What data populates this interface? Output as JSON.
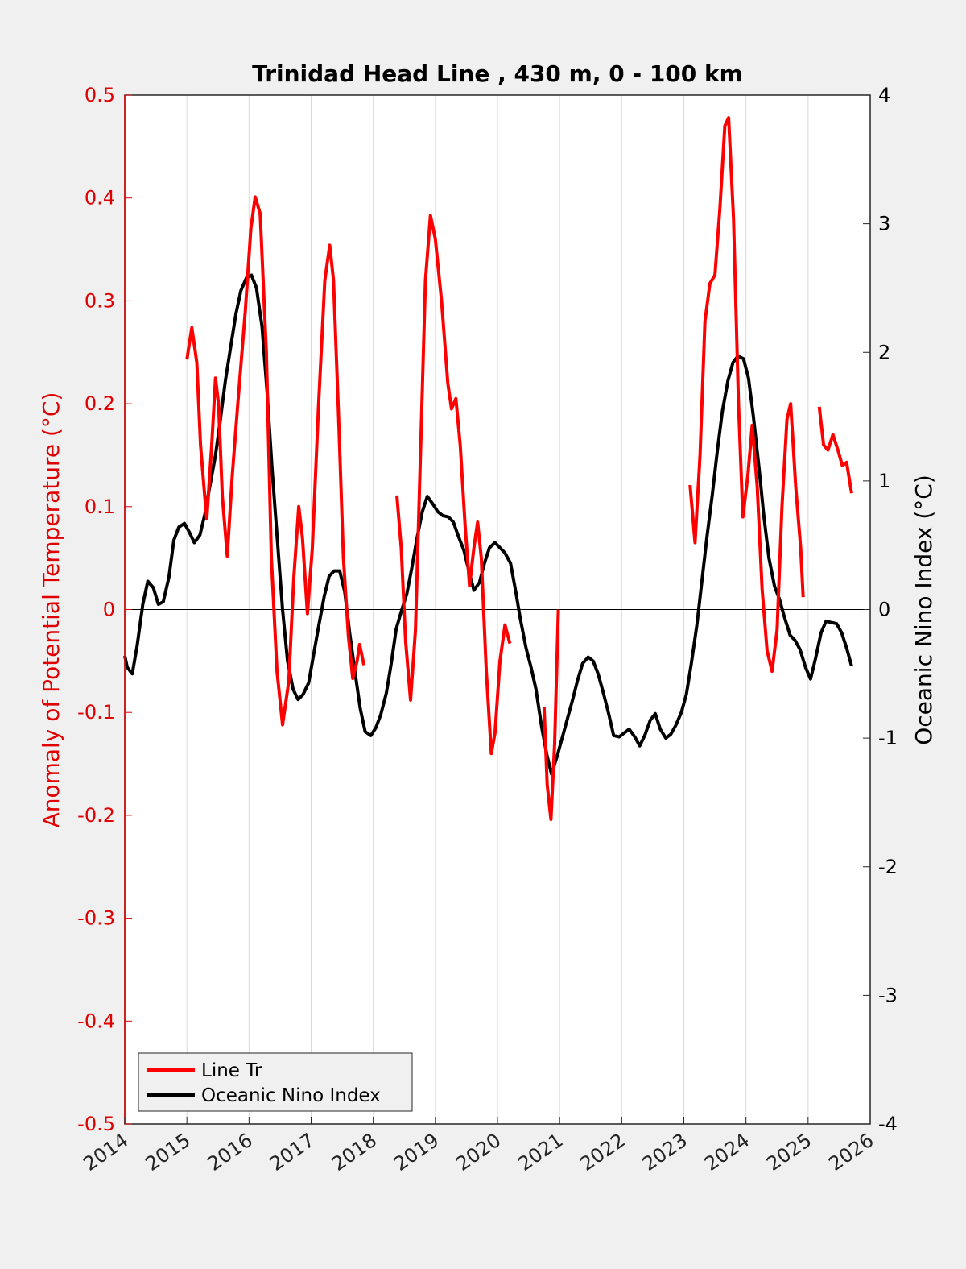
{
  "chart_data": {
    "type": "line",
    "title": "Trinidad Head Line , 430 m, 0 - 100 km",
    "xlabel": "",
    "ylabel_left": "Anomaly of Potential Temperature (°C)",
    "ylabel_right": "Oceanic Nino Index (°C)",
    "xlim": [
      2014,
      2026
    ],
    "ylim_left": [
      -0.5,
      0.5
    ],
    "ylim_right": [
      -4,
      4
    ],
    "x_ticks": [
      "2014",
      "2015",
      "2016",
      "2017",
      "2018",
      "2019",
      "2020",
      "2021",
      "2022",
      "2023",
      "2024",
      "2025",
      "2026"
    ],
    "y_ticks_left": [
      "0.5",
      "0.4",
      "0.3",
      "0.2",
      "0.1",
      "0",
      "-0.1",
      "-0.2",
      "-0.3",
      "-0.4",
      "-0.5"
    ],
    "y_ticks_right": [
      "4",
      "3",
      "2",
      "1",
      "0",
      "-1",
      "-2",
      "-3",
      "-4"
    ],
    "grid": "vertical",
    "zero_line": true,
    "legend_position": "bottom-left",
    "colors": {
      "left_axis": "#e00000",
      "line_tr": "#ff0000",
      "oni": "#000000",
      "grid": "#d9d9d9",
      "background": "#f0f0f0"
    },
    "series": [
      {
        "name": "Line Tr",
        "axis": "left",
        "color": "#ff0000",
        "segments": [
          [
            [
              2015.0,
              0.243
            ],
            [
              2015.08,
              0.274
            ],
            [
              2015.16,
              0.24
            ],
            [
              2015.22,
              0.16
            ],
            [
              2015.28,
              0.115
            ],
            [
              2015.32,
              0.088
            ],
            [
              2015.4,
              0.16
            ],
            [
              2015.46,
              0.225
            ],
            [
              2015.51,
              0.2
            ],
            [
              2015.57,
              0.11
            ],
            [
              2015.65,
              0.052
            ],
            [
              2015.73,
              0.13
            ],
            [
              2015.82,
              0.2
            ],
            [
              2015.94,
              0.29
            ],
            [
              2016.03,
              0.37
            ],
            [
              2016.1,
              0.401
            ],
            [
              2016.18,
              0.385
            ],
            [
              2016.28,
              0.25
            ],
            [
              2016.36,
              0.05
            ],
            [
              2016.45,
              -0.06
            ],
            [
              2016.54,
              -0.112
            ],
            [
              2016.64,
              -0.07
            ],
            [
              2016.72,
              0.03
            ],
            [
              2016.8,
              0.1
            ],
            [
              2016.86,
              0.07
            ],
            [
              2016.94,
              -0.004
            ],
            [
              2017.02,
              0.06
            ],
            [
              2017.12,
              0.2
            ],
            [
              2017.22,
              0.32
            ],
            [
              2017.3,
              0.354
            ],
            [
              2017.36,
              0.32
            ],
            [
              2017.44,
              0.19
            ],
            [
              2017.52,
              0.05
            ],
            [
              2017.6,
              -0.026
            ],
            [
              2017.67,
              -0.067
            ],
            [
              2017.74,
              -0.05
            ],
            [
              2017.78,
              -0.034
            ],
            [
              2017.85,
              -0.054
            ]
          ],
          [
            [
              2018.38,
              0.111
            ],
            [
              2018.45,
              0.06
            ],
            [
              2018.52,
              -0.03
            ],
            [
              2018.6,
              -0.088
            ],
            [
              2018.68,
              -0.02
            ],
            [
              2018.76,
              0.15
            ],
            [
              2018.84,
              0.32
            ],
            [
              2018.92,
              0.383
            ],
            [
              2019.0,
              0.36
            ],
            [
              2019.1,
              0.3
            ],
            [
              2019.2,
              0.22
            ],
            [
              2019.26,
              0.195
            ],
            [
              2019.33,
              0.205
            ],
            [
              2019.4,
              0.16
            ],
            [
              2019.48,
              0.08
            ],
            [
              2019.55,
              0.023
            ],
            [
              2019.62,
              0.06
            ],
            [
              2019.68,
              0.085
            ],
            [
              2019.74,
              0.05
            ],
            [
              2019.82,
              -0.06
            ],
            [
              2019.9,
              -0.14
            ],
            [
              2019.96,
              -0.12
            ],
            [
              2020.04,
              -0.05
            ],
            [
              2020.12,
              -0.015
            ],
            [
              2020.2,
              -0.033
            ]
          ],
          [
            [
              2020.75,
              -0.095
            ],
            [
              2020.8,
              -0.17
            ],
            [
              2020.86,
              -0.204
            ],
            [
              2020.92,
              -0.13
            ],
            [
              2020.98,
              0.0
            ]
          ],
          [
            [
              2023.1,
              0.121
            ],
            [
              2023.18,
              0.065
            ],
            [
              2023.26,
              0.15
            ],
            [
              2023.34,
              0.28
            ],
            [
              2023.42,
              0.317
            ],
            [
              2023.5,
              0.325
            ],
            [
              2023.58,
              0.39
            ],
            [
              2023.66,
              0.47
            ],
            [
              2023.72,
              0.478
            ],
            [
              2023.8,
              0.38
            ],
            [
              2023.88,
              0.2
            ],
            [
              2023.95,
              0.09
            ],
            [
              2024.03,
              0.13
            ],
            [
              2024.1,
              0.179
            ],
            [
              2024.18,
              0.12
            ],
            [
              2024.26,
              0.02
            ],
            [
              2024.34,
              -0.04
            ],
            [
              2024.42,
              -0.06
            ],
            [
              2024.5,
              -0.02
            ],
            [
              2024.58,
              0.1
            ],
            [
              2024.66,
              0.185
            ],
            [
              2024.72,
              0.2
            ],
            [
              2024.8,
              0.12
            ],
            [
              2024.88,
              0.06
            ],
            [
              2024.92,
              0.012
            ]
          ],
          [
            [
              2025.18,
              0.197
            ],
            [
              2025.25,
              0.16
            ],
            [
              2025.32,
              0.155
            ],
            [
              2025.4,
              0.17
            ],
            [
              2025.48,
              0.155
            ],
            [
              2025.55,
              0.14
            ],
            [
              2025.62,
              0.143
            ],
            [
              2025.7,
              0.113
            ]
          ]
        ]
      },
      {
        "name": "Oceanic Nino Index",
        "axis": "right",
        "color": "#000000",
        "segments": [
          [
            [
              2014.0,
              -0.36
            ],
            [
              2014.04,
              -0.45
            ],
            [
              2014.12,
              -0.5
            ],
            [
              2014.2,
              -0.28
            ],
            [
              2014.29,
              0.04
            ],
            [
              2014.37,
              0.22
            ],
            [
              2014.46,
              0.17
            ],
            [
              2014.54,
              0.04
            ],
            [
              2014.62,
              0.06
            ],
            [
              2014.71,
              0.25
            ],
            [
              2014.79,
              0.54
            ],
            [
              2014.87,
              0.64
            ],
            [
              2014.96,
              0.67
            ],
            [
              2015.04,
              0.6
            ],
            [
              2015.12,
              0.52
            ],
            [
              2015.21,
              0.58
            ],
            [
              2015.29,
              0.74
            ],
            [
              2015.37,
              0.96
            ],
            [
              2015.46,
              1.2
            ],
            [
              2015.54,
              1.48
            ],
            [
              2015.62,
              1.78
            ],
            [
              2015.71,
              2.06
            ],
            [
              2015.79,
              2.3
            ],
            [
              2015.87,
              2.48
            ],
            [
              2015.96,
              2.58
            ],
            [
              2016.04,
              2.6
            ],
            [
              2016.12,
              2.5
            ],
            [
              2016.21,
              2.2
            ],
            [
              2016.29,
              1.7
            ],
            [
              2016.37,
              1.1
            ],
            [
              2016.46,
              0.52
            ],
            [
              2016.54,
              0.0
            ],
            [
              2016.62,
              -0.4
            ],
            [
              2016.71,
              -0.62
            ],
            [
              2016.79,
              -0.7
            ],
            [
              2016.87,
              -0.66
            ],
            [
              2016.96,
              -0.57
            ],
            [
              2017.04,
              -0.35
            ],
            [
              2017.12,
              -0.13
            ],
            [
              2017.21,
              0.1
            ],
            [
              2017.29,
              0.26
            ],
            [
              2017.37,
              0.3
            ],
            [
              2017.46,
              0.3
            ],
            [
              2017.54,
              0.14
            ],
            [
              2017.62,
              -0.18
            ],
            [
              2017.71,
              -0.5
            ],
            [
              2017.79,
              -0.77
            ],
            [
              2017.87,
              -0.95
            ],
            [
              2017.96,
              -0.98
            ],
            [
              2018.04,
              -0.92
            ],
            [
              2018.12,
              -0.82
            ],
            [
              2018.21,
              -0.65
            ],
            [
              2018.29,
              -0.42
            ],
            [
              2018.37,
              -0.15
            ],
            [
              2018.46,
              0.0
            ],
            [
              2018.54,
              0.12
            ],
            [
              2018.62,
              0.32
            ],
            [
              2018.71,
              0.57
            ],
            [
              2018.79,
              0.76
            ],
            [
              2018.87,
              0.88
            ],
            [
              2018.96,
              0.82
            ],
            [
              2019.04,
              0.76
            ],
            [
              2019.12,
              0.73
            ],
            [
              2019.21,
              0.72
            ],
            [
              2019.29,
              0.68
            ],
            [
              2019.37,
              0.57
            ],
            [
              2019.46,
              0.46
            ],
            [
              2019.54,
              0.3
            ],
            [
              2019.62,
              0.15
            ],
            [
              2019.71,
              0.21
            ],
            [
              2019.79,
              0.36
            ],
            [
              2019.87,
              0.48
            ],
            [
              2019.96,
              0.52
            ],
            [
              2020.04,
              0.48
            ],
            [
              2020.12,
              0.44
            ],
            [
              2020.21,
              0.36
            ],
            [
              2020.29,
              0.15
            ],
            [
              2020.37,
              -0.08
            ],
            [
              2020.46,
              -0.3
            ],
            [
              2020.54,
              -0.45
            ],
            [
              2020.62,
              -0.62
            ],
            [
              2020.71,
              -0.91
            ],
            [
              2020.79,
              -1.12
            ],
            [
              2020.87,
              -1.28
            ],
            [
              2020.96,
              -1.14
            ],
            [
              2021.04,
              -1.0
            ],
            [
              2021.12,
              -0.86
            ],
            [
              2021.21,
              -0.7
            ],
            [
              2021.29,
              -0.55
            ],
            [
              2021.37,
              -0.42
            ],
            [
              2021.46,
              -0.37
            ],
            [
              2021.54,
              -0.4
            ],
            [
              2021.62,
              -0.5
            ],
            [
              2021.71,
              -0.66
            ],
            [
              2021.79,
              -0.81
            ],
            [
              2021.87,
              -0.98
            ],
            [
              2021.96,
              -0.99
            ],
            [
              2022.04,
              -0.96
            ],
            [
              2022.12,
              -0.93
            ],
            [
              2022.21,
              -0.99
            ],
            [
              2022.29,
              -1.06
            ],
            [
              2022.37,
              -0.98
            ],
            [
              2022.46,
              -0.86
            ],
            [
              2022.54,
              -0.81
            ],
            [
              2022.62,
              -0.93
            ],
            [
              2022.71,
              -1.0
            ],
            [
              2022.79,
              -0.97
            ],
            [
              2022.87,
              -0.9
            ],
            [
              2022.96,
              -0.8
            ],
            [
              2023.04,
              -0.66
            ],
            [
              2023.12,
              -0.42
            ],
            [
              2023.21,
              -0.12
            ],
            [
              2023.29,
              0.22
            ],
            [
              2023.37,
              0.56
            ],
            [
              2023.46,
              0.9
            ],
            [
              2023.54,
              1.24
            ],
            [
              2023.62,
              1.54
            ],
            [
              2023.71,
              1.78
            ],
            [
              2023.79,
              1.92
            ],
            [
              2023.87,
              1.97
            ],
            [
              2023.96,
              1.95
            ],
            [
              2024.04,
              1.8
            ],
            [
              2024.12,
              1.5
            ],
            [
              2024.21,
              1.1
            ],
            [
              2024.29,
              0.72
            ],
            [
              2024.37,
              0.4
            ],
            [
              2024.46,
              0.18
            ],
            [
              2024.54,
              0.08
            ],
            [
              2024.62,
              -0.06
            ],
            [
              2024.71,
              -0.2
            ],
            [
              2024.79,
              -0.24
            ],
            [
              2024.87,
              -0.31
            ],
            [
              2024.96,
              -0.45
            ],
            [
              2025.04,
              -0.54
            ],
            [
              2025.12,
              -0.38
            ],
            [
              2025.21,
              -0.18
            ],
            [
              2025.29,
              -0.09
            ],
            [
              2025.37,
              -0.1
            ],
            [
              2025.46,
              -0.11
            ],
            [
              2025.54,
              -0.18
            ],
            [
              2025.62,
              -0.3
            ],
            [
              2025.7,
              -0.44
            ]
          ]
        ]
      }
    ]
  },
  "legend": {
    "items": [
      {
        "label": "Line Tr",
        "color": "#ff0000"
      },
      {
        "label": "Oceanic Nino Index",
        "color": "#000000"
      }
    ]
  }
}
